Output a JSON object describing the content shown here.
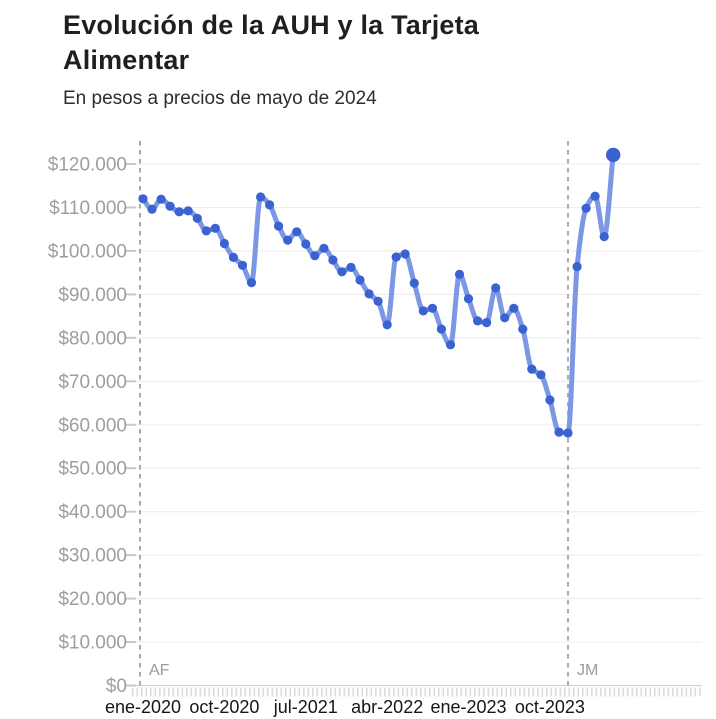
{
  "header": {
    "title_line1": "Evolución de la AUH y la Tarjeta",
    "title_line2": "Alimentar",
    "subtitle": "En pesos a precios de mayo de 2024"
  },
  "chart_data": {
    "type": "line",
    "title": "Evolución de la AUH y la Tarjeta Alimentar",
    "subtitle": "En pesos a precios de mayo de 2024",
    "x": [
      "ene-2020",
      "feb-2020",
      "mar-2020",
      "abr-2020",
      "may-2020",
      "jun-2020",
      "jul-2020",
      "ago-2020",
      "sep-2020",
      "oct-2020",
      "nov-2020",
      "dic-2020",
      "ene-2021",
      "feb-2021",
      "mar-2021",
      "abr-2021",
      "may-2021",
      "jun-2021",
      "jul-2021",
      "ago-2021",
      "sep-2021",
      "oct-2021",
      "nov-2021",
      "dic-2021",
      "ene-2022",
      "feb-2022",
      "mar-2022",
      "abr-2022",
      "may-2022",
      "jun-2022",
      "jul-2022",
      "ago-2022",
      "sep-2022",
      "oct-2022",
      "nov-2022",
      "dic-2022",
      "ene-2023",
      "feb-2023",
      "mar-2023",
      "abr-2023",
      "may-2023",
      "jun-2023",
      "jul-2023",
      "ago-2023",
      "sep-2023",
      "oct-2023",
      "nov-2023",
      "dic-2023",
      "ene-2024",
      "feb-2024",
      "mar-2024",
      "abr-2024",
      "may-2024"
    ],
    "values": [
      112000,
      109600,
      111900,
      110300,
      109000,
      109200,
      107500,
      104600,
      105200,
      101700,
      98500,
      96700,
      92700,
      112400,
      110600,
      105700,
      102500,
      104400,
      101600,
      98900,
      100600,
      97900,
      95200,
      96200,
      93300,
      90100,
      88400,
      83000,
      98600,
      99300,
      92600,
      86200,
      86800,
      82000,
      78400,
      94600,
      89000,
      83900,
      83500,
      91500,
      84600,
      86800,
      82000,
      72800,
      71500,
      65700,
      58300,
      58100,
      96400,
      109800,
      112600,
      103300,
      122100
    ],
    "x_tick_labels": [
      "ene-2020",
      "oct-2020",
      "jul-2021",
      "abr-2022",
      "ene-2023",
      "oct-2023"
    ],
    "x_tick_indices": [
      0,
      9,
      18,
      27,
      36,
      45
    ],
    "y_ticks": [
      0,
      10000,
      20000,
      30000,
      40000,
      50000,
      60000,
      70000,
      80000,
      90000,
      100000,
      110000,
      120000
    ],
    "y_tick_labels": [
      "$0",
      "$10.000",
      "$20.000",
      "$30.000",
      "$40.000",
      "$50.000",
      "$60.000",
      "$70.000",
      "$80.000",
      "$90.000",
      "$100.000",
      "$110.000",
      "$120.000"
    ],
    "ylim": [
      0,
      125500
    ],
    "grid": true,
    "legend": false,
    "last_point_emphasis": true,
    "annotations": [
      {
        "label": "AF",
        "x_index": -0.33
      },
      {
        "label": "JM",
        "x_index": 47
      }
    ],
    "colors": {
      "line": "#7c97e4",
      "marker": "#3b62d1",
      "grid": "#ededed",
      "baseline": "#d2d2d2",
      "tick": "#c9c9c9",
      "minor_tick": "#dcdcdc",
      "dashed_line": "#ababab",
      "annotation_label": "#9b9b9b",
      "y_label": "#9e9e9e",
      "x_label": "#161616"
    }
  }
}
